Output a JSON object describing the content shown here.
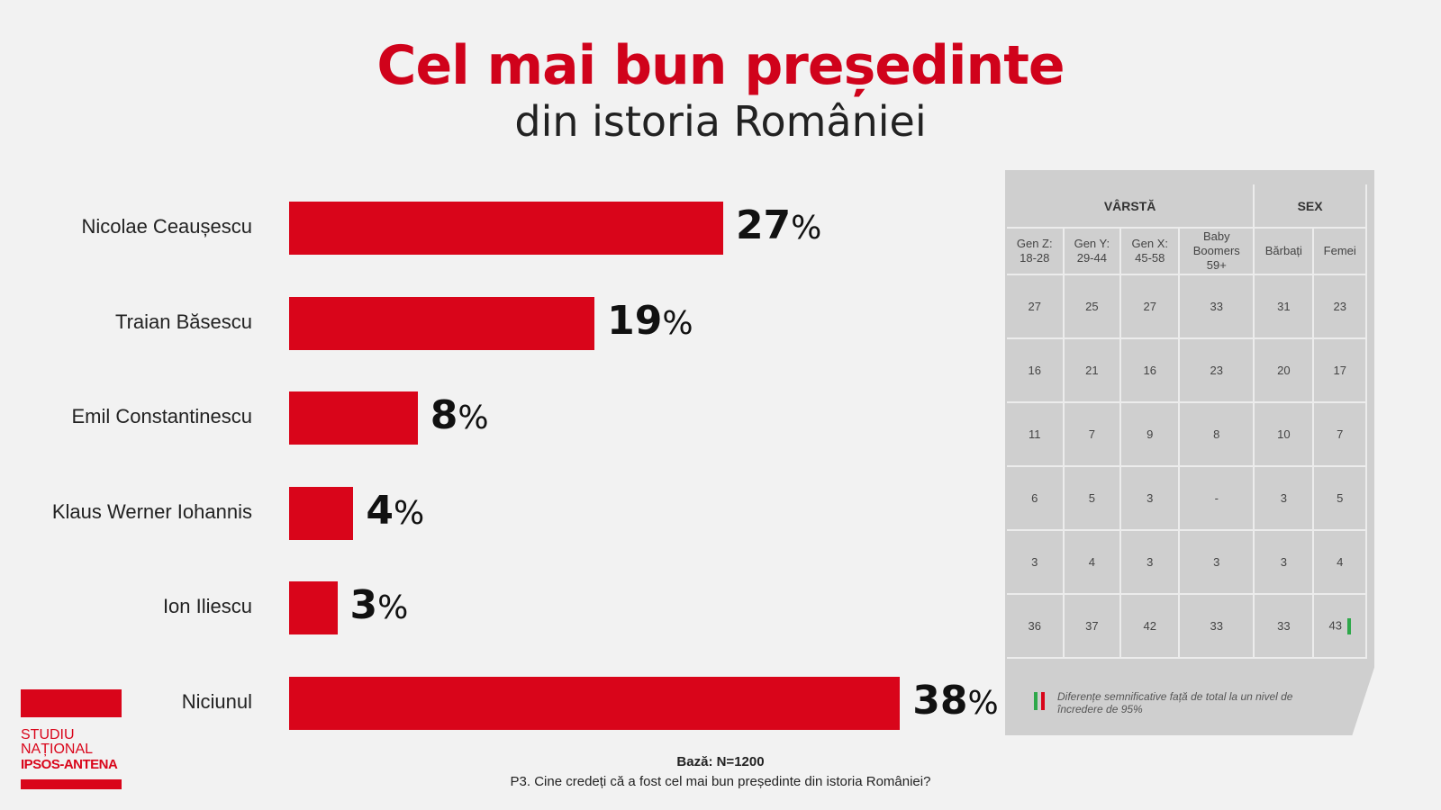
{
  "title": "Cel mai bun președinte",
  "subtitle": "din istoria României",
  "chart_data": {
    "type": "bar",
    "orientation": "horizontal",
    "categories": [
      "Nicolae Ceaușescu",
      "Traian Băsescu",
      "Emil Constantinescu",
      "Klaus Werner Iohannis",
      "Ion Iliescu",
      "Niciunul"
    ],
    "values": [
      27,
      19,
      8,
      4,
      3,
      38
    ],
    "unit": "%",
    "color": "#d9051a"
  },
  "table": {
    "groups": [
      "VÂRSTĂ",
      "SEX"
    ],
    "columns": [
      "Gen Z:\n18-28",
      "Gen Y:\n29-44",
      "Gen X:\n45-58",
      "Baby\nBoomers\n59+",
      "Bărbați",
      "Femei"
    ],
    "rows": [
      [
        "27",
        "25",
        "27",
        "33",
        "31",
        "23"
      ],
      [
        "16",
        "21",
        "16",
        "23",
        "20",
        "17"
      ],
      [
        "11",
        "7",
        "9",
        "8",
        "10",
        "7"
      ],
      [
        "6",
        "5",
        "3",
        "-",
        "3",
        "5"
      ],
      [
        "3",
        "4",
        "3",
        "3",
        "3",
        "4"
      ],
      [
        "36",
        "37",
        "42",
        "33",
        "33",
        "43"
      ]
    ],
    "significant_up": {
      "row": 5,
      "col": 5
    },
    "note": "Diferențe semnificative față de total la un nivel de încredere de 95%",
    "up_color": "#2ea84a",
    "down_color": "#d9051a"
  },
  "base": "Bază: N=1200",
  "question": "P3. Cine credeți că a fost cel mai bun președinte din istoria României?",
  "logo": {
    "line1": "STUDIU",
    "line2": "NAȚIONAL",
    "line3": "IPSOS-ANTENA"
  }
}
